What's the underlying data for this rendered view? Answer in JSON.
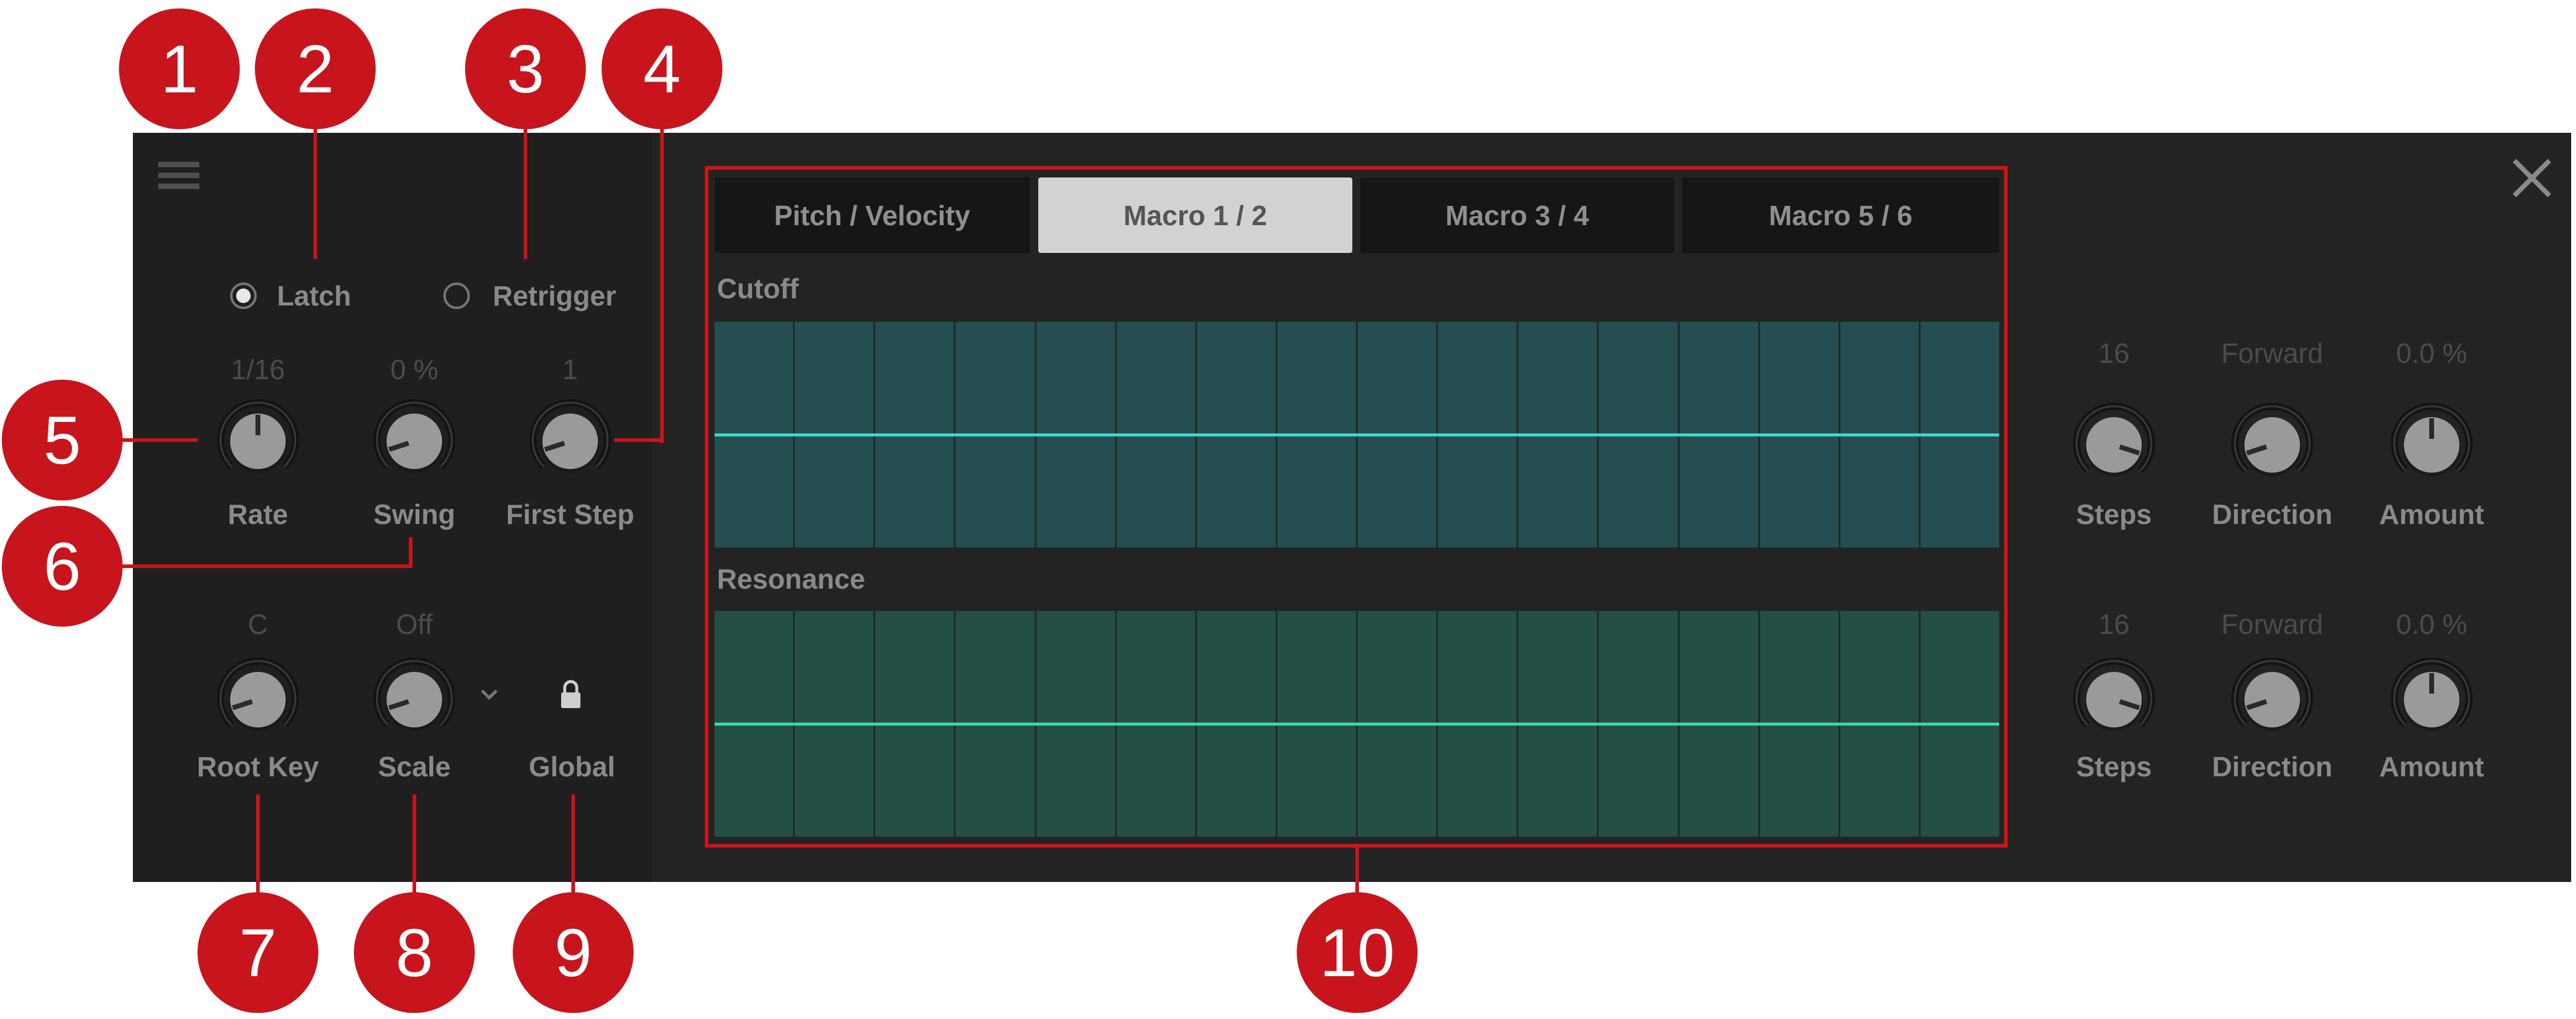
{
  "callouts": [
    "1",
    "2",
    "3",
    "4",
    "5",
    "6",
    "7",
    "8",
    "9",
    "10"
  ],
  "toolbar": {
    "menu_icon": "hamburger-menu-icon",
    "close_icon": "close-x-icon"
  },
  "mode": {
    "latch_label": "Latch",
    "latch_selected": true,
    "retrigger_label": "Retrigger",
    "retrigger_selected": false
  },
  "left_knobs": [
    {
      "label": "Rate",
      "value": "1/16",
      "level": 0.5
    },
    {
      "label": "Swing",
      "value": "0 %",
      "level": 0.1
    },
    {
      "label": "First Step",
      "value": "1",
      "level": 0.1
    },
    {
      "label": "Root Key",
      "value": "C",
      "level": 0.1
    },
    {
      "label": "Scale",
      "value": "Off",
      "level": 0.1
    }
  ],
  "scale_dropdown_icon": "chevron-down-icon",
  "global": {
    "label": "Global",
    "icon": "lock-icon"
  },
  "tabs": [
    {
      "label": "Pitch / Velocity",
      "active": false
    },
    {
      "label": "Macro 1 / 2",
      "active": true
    },
    {
      "label": "Macro 3 / 4",
      "active": false
    },
    {
      "label": "Macro 5 / 6",
      "active": false
    }
  ],
  "lanes": [
    {
      "label": "Cutoff",
      "steps": 16,
      "value": 0.5,
      "color": "#244e50",
      "line_color": "#3fd8cc",
      "knobs": [
        {
          "label": "Steps",
          "value": "16",
          "level": 0.9
        },
        {
          "label": "Direction",
          "value": "Forward",
          "level": 0.1
        },
        {
          "label": "Amount",
          "value": "0.0 %",
          "level": 0.5
        }
      ]
    },
    {
      "label": "Resonance",
      "steps": 16,
      "value": 0.5,
      "color": "#234f45",
      "line_color": "#3ed6a6",
      "knobs": [
        {
          "label": "Steps",
          "value": "16",
          "level": 0.9
        },
        {
          "label": "Direction",
          "value": "Forward",
          "level": 0.1
        },
        {
          "label": "Amount",
          "value": "0.0 %",
          "level": 0.5
        }
      ]
    }
  ]
}
